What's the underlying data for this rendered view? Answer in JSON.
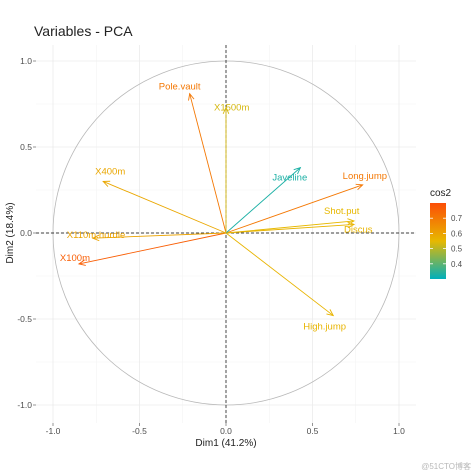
{
  "chart_data": {
    "type": "scatter",
    "subtype": "pca-correlation-circle",
    "title": "Variables - PCA",
    "xlabel": "Dim1 (41.2%)",
    "ylabel": "Dim2 (18.4%)",
    "xlim": [
      -1.05,
      1.05
    ],
    "ylim": [
      -1.05,
      1.05
    ],
    "xticks": [
      -1.0,
      -0.5,
      0.0,
      0.5,
      1.0
    ],
    "xtick_labels": [
      "-1.0",
      "-0.5",
      "0.0",
      "0.5",
      "1.0"
    ],
    "yticks": [
      -1.0,
      -0.5,
      0.0,
      0.5,
      1.0
    ],
    "ytick_labels": [
      "-1.0",
      "-0.5",
      "0.0",
      "0.5",
      "1.0"
    ],
    "grid": true,
    "unit_circle": true,
    "reference_lines": [
      0,
      0
    ],
    "legend": {
      "title": "cos2",
      "placement": "right",
      "type": "colorbar",
      "range": [
        0.3,
        0.8
      ],
      "ticks": [
        0.4,
        0.5,
        0.6,
        0.7
      ],
      "tick_labels": [
        "0.4",
        "0.5",
        "0.6",
        "0.7"
      ],
      "gradient": [
        "#00afbb",
        "#e7b800",
        "#fc4e07"
      ]
    },
    "variables": [
      {
        "name": "X100m",
        "x": -0.85,
        "y": -0.18,
        "cos2": 0.76
      },
      {
        "name": "Long.jump",
        "x": 0.79,
        "y": 0.28,
        "cos2": 0.7
      },
      {
        "name": "Shot.put",
        "x": 0.74,
        "y": 0.07,
        "cos2": 0.55
      },
      {
        "name": "High.jump",
        "x": 0.62,
        "y": -0.48,
        "cos2": 0.56
      },
      {
        "name": "X400m",
        "x": -0.71,
        "y": 0.3,
        "cos2": 0.59
      },
      {
        "name": "X110m.hurdle",
        "x": -0.77,
        "y": -0.03,
        "cos2": 0.6
      },
      {
        "name": "Discus",
        "x": 0.74,
        "y": 0.05,
        "cos2": 0.56
      },
      {
        "name": "Pole.vault",
        "x": -0.21,
        "y": 0.81,
        "cos2": 0.7
      },
      {
        "name": "Javeline",
        "x": 0.43,
        "y": 0.38,
        "cos2": 0.33
      },
      {
        "name": "X1500m",
        "x": 0.0,
        "y": 0.73,
        "cos2": 0.53
      }
    ]
  },
  "watermark": "@51CTO博客"
}
